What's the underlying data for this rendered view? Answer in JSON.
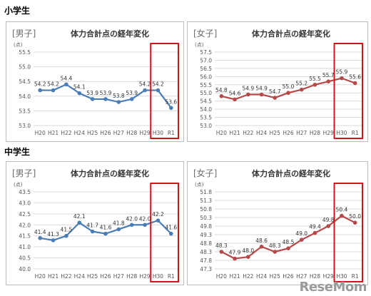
{
  "sections": {
    "elementary": "小学生",
    "middle": "中学生"
  },
  "watermark": "ReseMom",
  "colors": {
    "boys_line": "#4a7db5",
    "girls_line": "#b5494a",
    "highlight_box": "#d0131b",
    "grid": "#d9d9d9",
    "axis_text": "#555555"
  },
  "chart_data": [
    {
      "type": "line",
      "group": "elementary",
      "tag": "[男子]",
      "title": "体力合計点の経年変化",
      "ylabel": "(点)",
      "categories": [
        "H20",
        "H21",
        "H22",
        "H24",
        "H25",
        "H26",
        "H27",
        "H28",
        "H29",
        "H30",
        "R1"
      ],
      "values": [
        54.2,
        54.2,
        54.4,
        54.1,
        53.9,
        53.9,
        53.8,
        53.9,
        54.2,
        54.2,
        53.6
      ],
      "ylim": [
        53.0,
        55.5
      ],
      "yticks": [
        "53.0",
        "53.5",
        "54.0",
        "54.5",
        "55.0",
        "55.5"
      ],
      "highlight": [
        "H30",
        "R1"
      ]
    },
    {
      "type": "line",
      "group": "elementary",
      "tag": "[女子]",
      "title": "体力合計点の経年変化",
      "ylabel": "(点)",
      "categories": [
        "H20",
        "H21",
        "H22",
        "H24",
        "H25",
        "H26",
        "H27",
        "H28",
        "H29",
        "H30",
        "R1"
      ],
      "values": [
        54.8,
        54.6,
        54.9,
        54.9,
        54.7,
        55.0,
        55.2,
        55.5,
        55.7,
        55.9,
        55.6
      ],
      "ylim": [
        53.0,
        57.5
      ],
      "yticks": [
        "53.0",
        "53.5",
        "54.0",
        "54.5",
        "55.0",
        "55.5",
        "56.0",
        "56.5",
        "57.0",
        "57.5"
      ],
      "highlight": [
        "H30",
        "R1"
      ]
    },
    {
      "type": "line",
      "group": "middle",
      "tag": "[男子]",
      "title": "体力合計点の経年変化",
      "ylabel": "(点)",
      "categories": [
        "H20",
        "H21",
        "H22",
        "H24",
        "H25",
        "H26",
        "H27",
        "H28",
        "H29",
        "H30",
        "R1"
      ],
      "values": [
        41.4,
        41.3,
        41.5,
        42.1,
        41.7,
        41.6,
        41.8,
        42.0,
        42.0,
        42.2,
        41.6
      ],
      "ylim": [
        40.0,
        43.5
      ],
      "yticks": [
        "40.0",
        "40.5",
        "41.0",
        "41.5",
        "42.0",
        "42.5",
        "43.0",
        "43.5"
      ],
      "highlight": [
        "H30",
        "R1"
      ]
    },
    {
      "type": "line",
      "group": "middle",
      "tag": "[女子]",
      "title": "体力合計点の経年変化",
      "ylabel": "(点)",
      "categories": [
        "H20",
        "H21",
        "H22",
        "H24",
        "H25",
        "H26",
        "H27",
        "H28",
        "H29",
        "H30",
        "R1"
      ],
      "values": [
        48.3,
        47.9,
        48.0,
        48.6,
        48.3,
        48.5,
        49.0,
        49.4,
        49.8,
        50.4,
        50.0
      ],
      "ylim": [
        47.3,
        51.8
      ],
      "yticks": [
        "47.3",
        "47.8",
        "48.3",
        "48.8",
        "49.3",
        "49.8",
        "50.3",
        "50.8",
        "51.3",
        "51.8"
      ],
      "highlight": [
        "H30",
        "R1"
      ]
    }
  ]
}
